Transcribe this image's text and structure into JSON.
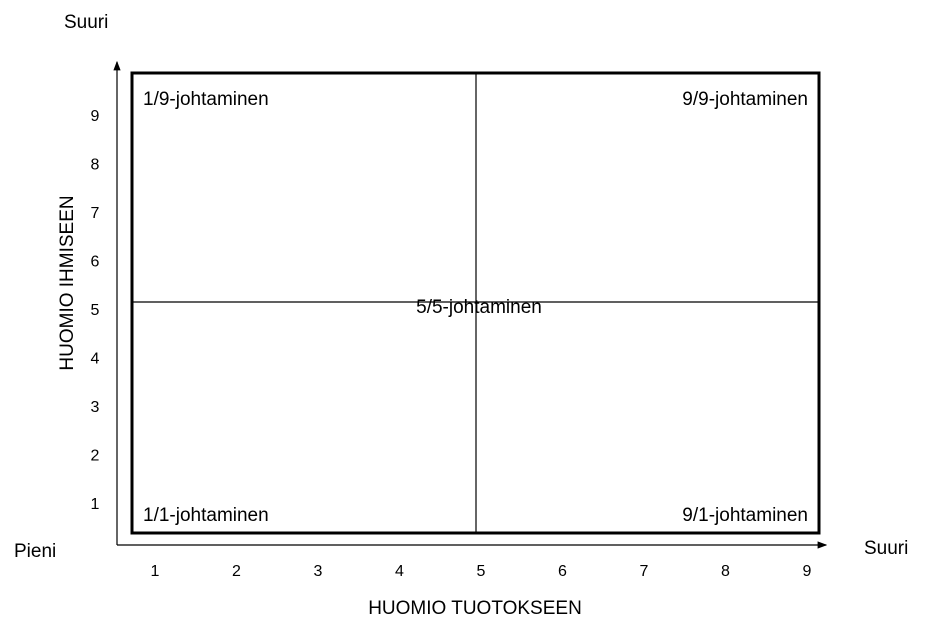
{
  "axis_labels": {
    "y_top": "Suuri",
    "origin": "Pieni",
    "x_right": "Suuri",
    "y_title": "HUOMIO IHMISEEN",
    "x_title": "HUOMIO TUOTOKSEEN"
  },
  "ticks": {
    "x": [
      "1",
      "2",
      "3",
      "4",
      "5",
      "6",
      "7",
      "8",
      "9"
    ],
    "y": [
      "1",
      "2",
      "3",
      "4",
      "5",
      "6",
      "7",
      "8",
      "9"
    ]
  },
  "quadrants": {
    "top_left": "1/9-johtaminen",
    "top_right": "9/9-johtaminen",
    "center": "5/5-johtaminen",
    "bottom_left": "1/1-johtaminen",
    "bottom_right": "9/1-johtaminen"
  }
}
